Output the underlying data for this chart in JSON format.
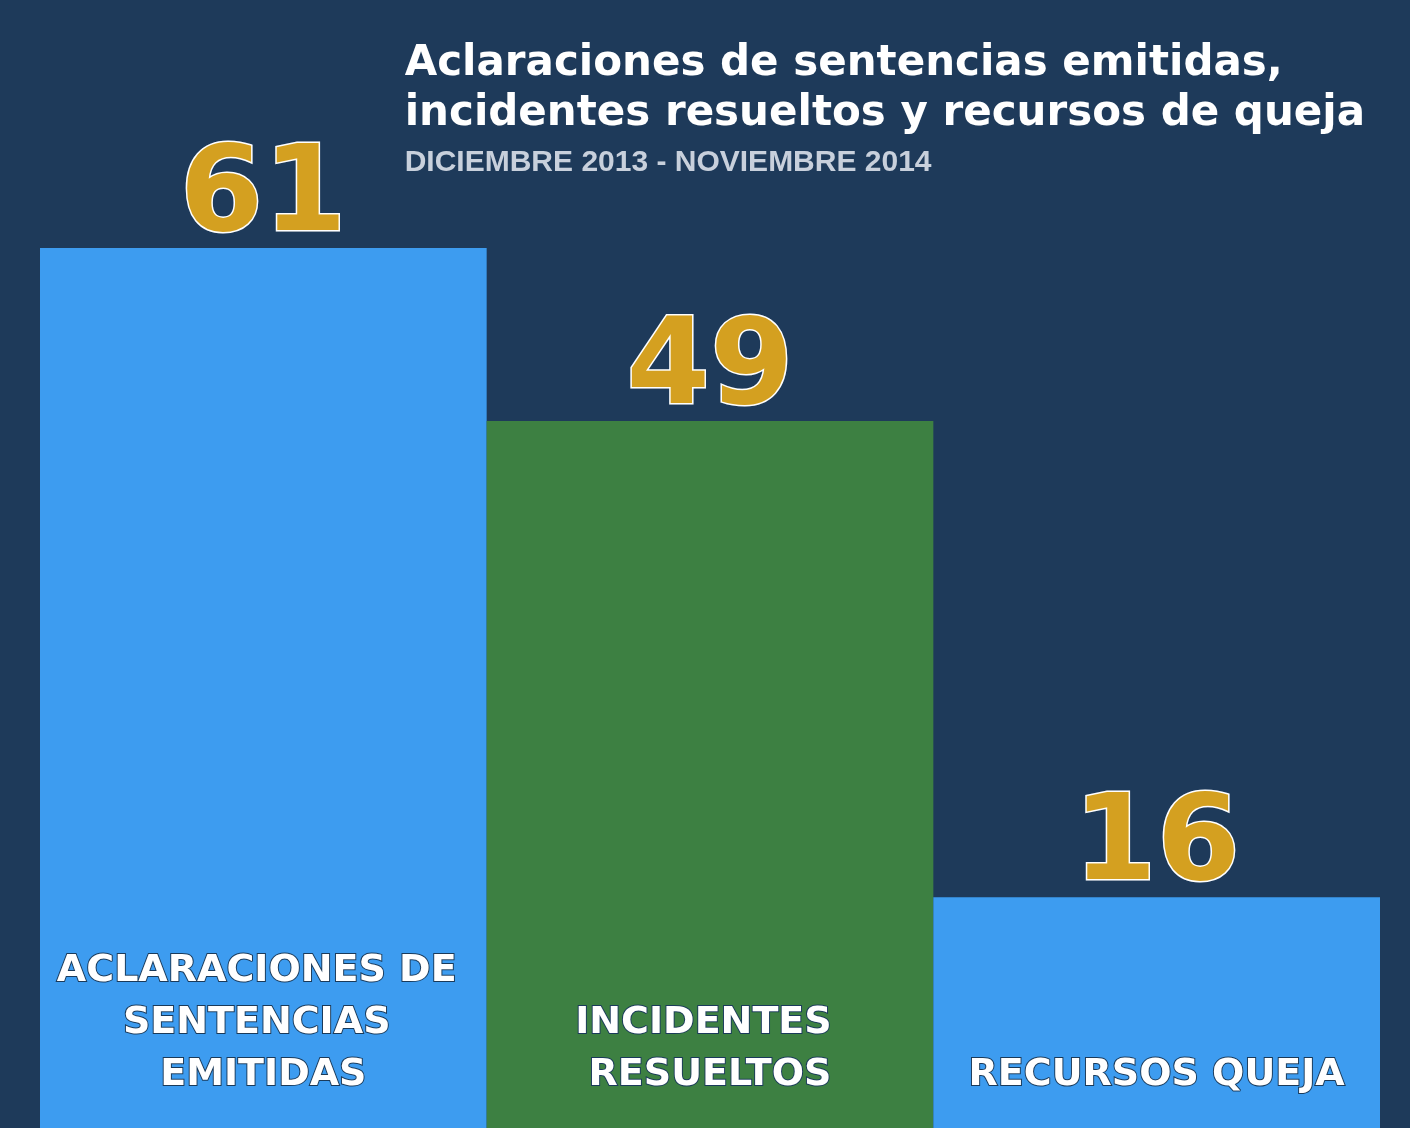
{
  "chart_data": {
    "type": "bar",
    "title": "Aclaraciones de sentencias emitidas,\nincidentes resueltos y recursos de queja",
    "subtitle": "DICIEMBRE 2013 - NOVIEMBRE 2014",
    "categories": [
      "ACLARACIONES DE SENTENCIAS EMITIDAS",
      "INCIDENTES RESUELTOS",
      "RECURSOS QUEJA"
    ],
    "values": [
      61,
      49,
      16
    ],
    "colors": [
      "#3d9cf0",
      "#3d8042",
      "#3d9cf0"
    ],
    "data_labels": true
  }
}
